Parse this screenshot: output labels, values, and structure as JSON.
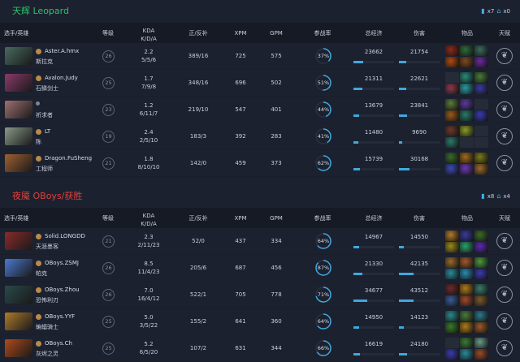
{
  "columns": {
    "player": "选手/英雄",
    "level": "等级",
    "kda1": "KDA",
    "kda2": "K/D/A",
    "lh": "正/反补",
    "xpm": "XPM",
    "gpm": "GPM",
    "part": "参战率",
    "net": "总经济",
    "dmg": "伤害",
    "items": "物品",
    "talent": "天赋"
  },
  "accent": "#3fa8dd",
  "teams": [
    {
      "name": "天辉 Leopard",
      "color": "#2bc46a",
      "towers": "x7",
      "barracks": "x0",
      "players": [
        {
          "player": "Aster.A.hmx",
          "hero": "斯拉克",
          "level": "26",
          "kda": "2.2",
          "kda_detail": "5/5/6",
          "lh": "389/16",
          "xpm": "725",
          "gpm": "575",
          "part": "37%",
          "net": "23662",
          "dmg": "21754",
          "avatar": "#4a6a60",
          "items": [
            "#8a2a1a",
            "#2f6a3a",
            "#3a6a5a",
            "#b04a10",
            "#7a4a20",
            "#6a2aa0"
          ]
        },
        {
          "player": "Avalon.Judy",
          "hero": "石鳞剑士",
          "level": "25",
          "kda": "1.7",
          "kda_detail": "7/9/8",
          "lh": "348/16",
          "xpm": "696",
          "gpm": "502",
          "part": "51%",
          "net": "21311",
          "dmg": "22621",
          "avatar": "#8a3a6a",
          "items": [
            null,
            "#2a8a7a",
            "#4a7a3a",
            "#8a3a4a",
            "#2a9aa0",
            "#3a3aa0"
          ]
        },
        {
          "player": "",
          "hero": "祈求者",
          "level": "23",
          "kda": "1.2",
          "kda_detail": "6/11/7",
          "lh": "219/10",
          "xpm": "547",
          "gpm": "401",
          "part": "44%",
          "net": "13679",
          "dmg": "23841",
          "avatar": "#a07070",
          "items": [
            "#5a7a3a",
            "#5a3aa0",
            null,
            "#9a5a1a",
            "#2a7a6a",
            "#3a3ab0"
          ]
        },
        {
          "player": "LT",
          "hero": "陈",
          "level": "19",
          "kda": "2.4",
          "kda_detail": "2/5/10",
          "lh": "183/3",
          "xpm": "392",
          "gpm": "283",
          "part": "41%",
          "net": "11480",
          "dmg": "9690",
          "avatar": "#8a9a8a",
          "items": [
            "#6a3a2a",
            "#8a9a2a",
            null,
            "#2a7a6a",
            null,
            null
          ]
        },
        {
          "player": "Dragon.FuSheng",
          "hero": "工程师",
          "level": "21",
          "kda": "1.8",
          "kda_detail": "8/10/10",
          "lh": "142/0",
          "xpm": "459",
          "gpm": "373",
          "part": "62%",
          "net": "15739",
          "dmg": "30168",
          "avatar": "#a06030",
          "items": [
            "#3a6a2a",
            "#a06a1a",
            "#7a7a1a",
            "#3a4ab0",
            "#6a3ab0",
            "#9a6a2a"
          ]
        }
      ]
    },
    {
      "name": "夜魇 OBoys/获胜",
      "color": "#e0403a",
      "towers": "x8",
      "barracks": "x4",
      "players": [
        {
          "player": "Solid.LONGDD",
          "hero": "天涯墨客",
          "level": "21",
          "kda": "2.3",
          "kda_detail": "2/11/23",
          "lh": "52/0",
          "xpm": "437",
          "gpm": "334",
          "part": "64%",
          "net": "14967",
          "dmg": "14550",
          "avatar": "#8a2a2a",
          "items": [
            "#b07a2a",
            "#3a3a9a",
            "#3a6a2a",
            "#9a8a1a",
            "#2aa06a",
            "#5a2ab0"
          ]
        },
        {
          "player": "OBoys.ZSMJ",
          "hero": "帕克",
          "level": "26",
          "kda": "8.5",
          "kda_detail": "11/4/23",
          "lh": "205/6",
          "xpm": "687",
          "gpm": "456",
          "part": "87%",
          "net": "21330",
          "dmg": "42135",
          "avatar": "#4a7ad0",
          "items": [
            "#9a6a2a",
            "#a05a2a",
            "#4a9a3a",
            "#2a8a9a",
            "#2a8ab0",
            "#3a3ab0"
          ]
        },
        {
          "player": "OBoys.Zhou",
          "hero": "恐怖利刃",
          "level": "26",
          "kda": "7.0",
          "kda_detail": "16/4/12",
          "lh": "522/1",
          "xpm": "705",
          "gpm": "778",
          "part": "71%",
          "net": "34677",
          "dmg": "43512",
          "avatar": "#2a4a4a",
          "items": [
            "#6a2a2a",
            "#b07a1a",
            "#3a7a6a",
            "#3a5a9a",
            "#a04a2a",
            "#7a5a2a"
          ]
        },
        {
          "player": "OBoys.YYF",
          "hero": "蝙蝠骑士",
          "level": "25",
          "kda": "5.0",
          "kda_detail": "3/5/22",
          "lh": "155/2",
          "xpm": "641",
          "gpm": "360",
          "part": "64%",
          "net": "14950",
          "dmg": "14123",
          "avatar": "#b07a2a",
          "items": [
            "#2a8a8a",
            "#4a7a3a",
            "#2a7a8a",
            "#3a7a2a",
            "#b07a1a",
            "#9a5a2a"
          ]
        },
        {
          "player": "OBoys.Ch",
          "hero": "灰烬之灵",
          "level": "25",
          "kda": "5.2",
          "kda_detail": "6/5/20",
          "lh": "107/2",
          "xpm": "631",
          "gpm": "344",
          "part": "66%",
          "net": "16619",
          "dmg": "24180",
          "avatar": "#b04a1a",
          "items": [
            null,
            "#3a7a3a",
            "#6a9a8a",
            "#3a3ab0",
            "#2a8a9a",
            "#9a4a2a"
          ]
        }
      ]
    }
  ]
}
